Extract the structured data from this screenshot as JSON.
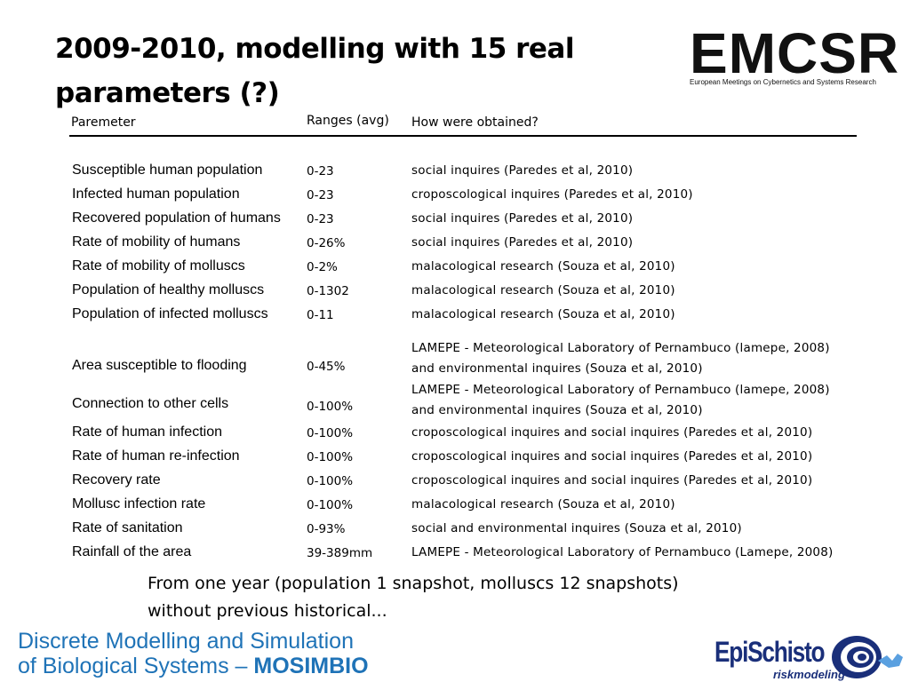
{
  "title": "2009-2010, modelling with 15 real parameters (?)",
  "logo": {
    "name": "EMCSR",
    "subtitle": "European Meetings on Cybernetics and Systems Research"
  },
  "table": {
    "headers": [
      "Paremeter",
      "Ranges (avg)",
      "How were obtained?"
    ],
    "rows": [
      {
        "parameter": "Susceptible human population",
        "range": "0-23",
        "source": [
          "social inquires (Paredes et al, 2010)"
        ]
      },
      {
        "parameter": "Infected human population",
        "range": "0-23",
        "source": [
          "croposcological inquires (Paredes et al, 2010)"
        ]
      },
      {
        "parameter": "Recovered population of humans",
        "range": "0-23",
        "source": [
          "social inquires (Paredes et al, 2010)"
        ]
      },
      {
        "parameter": "Rate of mobility of humans",
        "range": "0-26%",
        "source": [
          "social inquires (Paredes et al, 2010)"
        ]
      },
      {
        "parameter": "Rate of mobility of molluscs",
        "range": "0-2%",
        "source": [
          "malacological research (Souza et al, 2010)"
        ]
      },
      {
        "parameter": "Population of healthy molluscs",
        "range": "0-1302",
        "source": [
          "malacological research (Souza et al, 2010)"
        ]
      },
      {
        "parameter": "Population of infected molluscs",
        "range": "0-11",
        "source": [
          "malacological research (Souza et al, 2010)"
        ]
      },
      {
        "parameter": "Area susceptible to flooding",
        "range": "0-45%",
        "source": [
          "LAMEPE - Meteorological Laboratory of Pernambuco (lamepe, 2008)",
          "and  environmental inquires (Souza et al, 2010)"
        ]
      },
      {
        "parameter": "Connection to other cells",
        "range": "0-100%",
        "source": [
          "LAMEPE - Meteorological Laboratory of Pernambuco (lamepe, 2008)",
          "and  environmental inquires (Souza et al, 2010)"
        ]
      },
      {
        "parameter": "Rate of human infection",
        "range": "0-100%",
        "source": [
          "croposcological inquires and social inquires (Paredes et al, 2010)"
        ]
      },
      {
        "parameter": "Rate of human re-infection",
        "range": "0-100%",
        "source": [
          "croposcological inquires and social inquires (Paredes et al, 2010)"
        ]
      },
      {
        "parameter": "Recovery rate",
        "range": "0-100%",
        "source": [
          "croposcological inquires and social inquires (Paredes et al, 2010)"
        ]
      },
      {
        "parameter": "Mollusc infection rate",
        "range": "0-100%",
        "source": [
          "malacological research (Souza et al, 2010)"
        ]
      },
      {
        "parameter": "Rate of sanitation",
        "range": "0-93%",
        "source": [
          "social and environmental inquires (Souza et al, 2010)"
        ]
      },
      {
        "parameter": "Rainfall of the area",
        "range": "39-389mm",
        "source": [
          "LAMEPE - Meteorological Laboratory of Pernambuco (Lamepe, 2008)"
        ]
      }
    ]
  },
  "footnote": [
    "From one year (population 1 snapshot, molluscs 12 snapshots)",
    "without previous historical..."
  ],
  "brand": {
    "line1": "Discrete Modelling and Simulation",
    "line2_prefix": "of Biological Systems – ",
    "line2_bold": "MOSIMBIO"
  },
  "epischisto": {
    "name_part1": "Epi",
    "name_part2": "Schisto",
    "tagline": "riskmodeling"
  }
}
